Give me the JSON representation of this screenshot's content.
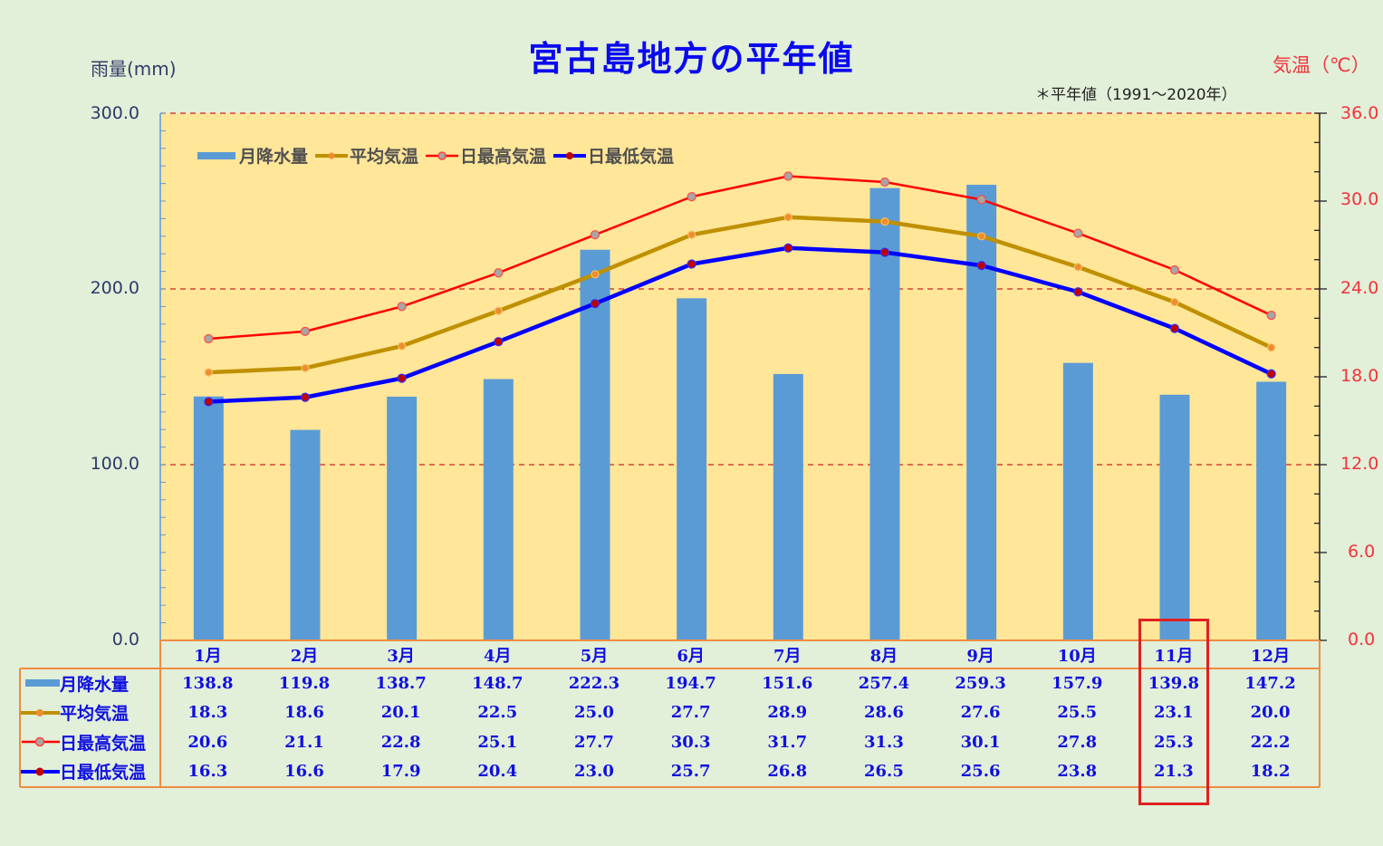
{
  "title": "宮古島地方の平年値",
  "left_axis_title": "雨量(mm)",
  "right_axis_title": "気温（℃）",
  "note": "＊平年値（1991～2020年）",
  "left_ticks": [
    "300.0",
    "200.0",
    "100.0",
    "0.0"
  ],
  "right_ticks": [
    "36.0",
    "30.0",
    "24.0",
    "18.0",
    "12.0",
    "6.0",
    "0.0"
  ],
  "legend": {
    "precip": "月降水量",
    "avg": "平均気温",
    "max": "日最高気温",
    "min": "日最低気温"
  },
  "colors": {
    "background": "#e2efd9",
    "plot_bg": "#ffe699",
    "bar": "#5b9bd5",
    "avg": "#bf9000",
    "avg_marker": "#f08c30",
    "max": "#ff0000",
    "max_marker": "#a6a6a6",
    "min": "#0000ff",
    "min_marker": "#c00000",
    "grid": "#d02020",
    "table_text": "#1010e0",
    "table_border": "#f08c40",
    "highlight": "#e02020"
  },
  "table": {
    "months": [
      "1月",
      "2月",
      "3月",
      "4月",
      "5月",
      "6月",
      "7月",
      "8月",
      "9月",
      "10月",
      "11月",
      "12月"
    ],
    "rows": [
      {
        "label": "月降水量",
        "values": [
          "138.8",
          "119.8",
          "138.7",
          "148.7",
          "222.3",
          "194.7",
          "151.6",
          "257.4",
          "259.3",
          "157.9",
          "139.8",
          "147.2"
        ]
      },
      {
        "label": "平均気温",
        "values": [
          "18.3",
          "18.6",
          "20.1",
          "22.5",
          "25.0",
          "27.7",
          "28.9",
          "28.6",
          "27.6",
          "25.5",
          "23.1",
          "20.0"
        ]
      },
      {
        "label": "日最高気温",
        "values": [
          "20.6",
          "21.1",
          "22.8",
          "25.1",
          "27.7",
          "30.3",
          "31.7",
          "31.3",
          "30.1",
          "27.8",
          "25.3",
          "22.2"
        ]
      },
      {
        "label": "日最低気温",
        "values": [
          "16.3",
          "16.6",
          "17.9",
          "20.4",
          "23.0",
          "25.7",
          "26.8",
          "26.5",
          "25.6",
          "23.8",
          "21.3",
          "18.2"
        ]
      }
    ],
    "highlighted_month": "11月"
  },
  "chart_data": {
    "type": "bar+line",
    "title": "宮古島地方の平年値",
    "subtitle": "＊平年値（1991～2020年）",
    "categories": [
      "1月",
      "2月",
      "3月",
      "4月",
      "5月",
      "6月",
      "7月",
      "8月",
      "9月",
      "10月",
      "11月",
      "12月"
    ],
    "series": [
      {
        "name": "月降水量",
        "type": "bar",
        "axis": "left",
        "values": [
          138.8,
          119.8,
          138.7,
          148.7,
          222.3,
          194.7,
          151.6,
          257.4,
          259.3,
          157.9,
          139.8,
          147.2
        ]
      },
      {
        "name": "平均気温",
        "type": "line",
        "axis": "right",
        "values": [
          18.3,
          18.6,
          20.1,
          22.5,
          25.0,
          27.7,
          28.9,
          28.6,
          27.6,
          25.5,
          23.1,
          20.0
        ]
      },
      {
        "name": "日最高気温",
        "type": "line",
        "axis": "right",
        "values": [
          20.6,
          21.1,
          22.8,
          25.1,
          27.7,
          30.3,
          31.7,
          31.3,
          30.1,
          27.8,
          25.3,
          22.2
        ]
      },
      {
        "name": "日最低気温",
        "type": "line",
        "axis": "right",
        "values": [
          16.3,
          16.6,
          17.9,
          20.4,
          23.0,
          25.7,
          26.8,
          26.5,
          25.6,
          23.8,
          21.3,
          18.2
        ]
      }
    ],
    "ylabel": "雨量(mm)",
    "ylim": [
      0,
      300
    ],
    "y2label": "気温（℃）",
    "y2lim": [
      0,
      36
    ],
    "grid": "dashed red at 100, 200, 300 mm",
    "legend_position": "top-left inside plot"
  }
}
